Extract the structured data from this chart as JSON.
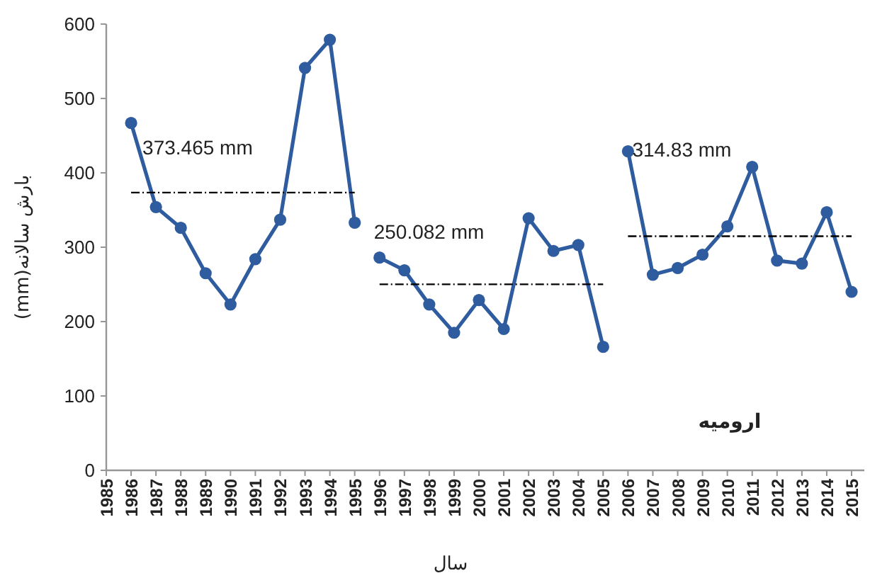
{
  "chart_data": {
    "type": "line",
    "xlabel": "سال",
    "ylabel": "بارش سالانه(mm)",
    "categories": [
      "1985",
      "1986",
      "1987",
      "1988",
      "1989",
      "1990",
      "1991",
      "1992",
      "1993",
      "1994",
      "1995",
      "1996",
      "1997",
      "1998",
      "1999",
      "2000",
      "2001",
      "2002",
      "2003",
      "2004",
      "2005",
      "2006",
      "2007",
      "2008",
      "2009",
      "2010",
      "2011",
      "2012",
      "2013",
      "2014",
      "2015"
    ],
    "ylim": [
      0,
      600
    ],
    "yticks": [
      0,
      100,
      200,
      300,
      400,
      500,
      600
    ],
    "series": [
      {
        "color": "#2e5c9e",
        "marker": "circle",
        "values": [
          null,
          467,
          354,
          326,
          265,
          223,
          284,
          337,
          541,
          579,
          333,
          null,
          null,
          null,
          null,
          null,
          null,
          null,
          null,
          null,
          null,
          null,
          null,
          null,
          null,
          null,
          null,
          null,
          null,
          null,
          null
        ]
      },
      {
        "color": "#2e5c9e",
        "marker": "circle",
        "values": [
          null,
          null,
          null,
          null,
          null,
          null,
          null,
          null,
          null,
          null,
          null,
          286,
          269,
          223,
          185,
          229,
          190,
          339,
          295,
          303,
          166,
          null,
          null,
          null,
          null,
          null,
          null,
          null,
          null,
          null,
          null
        ]
      },
      {
        "color": "#2e5c9e",
        "marker": "circle",
        "values": [
          null,
          null,
          null,
          null,
          null,
          null,
          null,
          null,
          null,
          null,
          null,
          null,
          null,
          null,
          null,
          null,
          null,
          null,
          null,
          null,
          null,
          429,
          263,
          272,
          290,
          328,
          408,
          282,
          278,
          347,
          240
        ]
      },
      {
        "color": "#000000",
        "marker": "none",
        "line_style": "dashed",
        "values": [
          null,
          373.465,
          373.465,
          373.465,
          373.465,
          373.465,
          373.465,
          373.465,
          373.465,
          373.465,
          373.465,
          null,
          null,
          null,
          null,
          null,
          null,
          null,
          null,
          null,
          null,
          null,
          null,
          null,
          null,
          null,
          null,
          null,
          null,
          null,
          null
        ]
      },
      {
        "color": "#000000",
        "marker": "none",
        "line_style": "dashed",
        "values": [
          null,
          null,
          null,
          null,
          null,
          null,
          null,
          null,
          null,
          null,
          null,
          250.082,
          250.082,
          250.082,
          250.082,
          250.082,
          250.082,
          250.082,
          250.082,
          250.082,
          250.082,
          null,
          null,
          null,
          null,
          null,
          null,
          null,
          null,
          null,
          null
        ]
      },
      {
        "color": "#000000",
        "marker": "none",
        "line_style": "dashed",
        "values": [
          null,
          null,
          null,
          null,
          null,
          null,
          null,
          null,
          null,
          null,
          null,
          null,
          null,
          null,
          null,
          null,
          null,
          null,
          null,
          null,
          null,
          314.83,
          314.83,
          314.83,
          314.83,
          314.83,
          314.83,
          314.83,
          314.83,
          314.83,
          314.83
        ]
      }
    ],
    "annotations": [
      "373.465 mm",
      "250.082 mm",
      "314.83 mm",
      "ارومیه"
    ]
  }
}
